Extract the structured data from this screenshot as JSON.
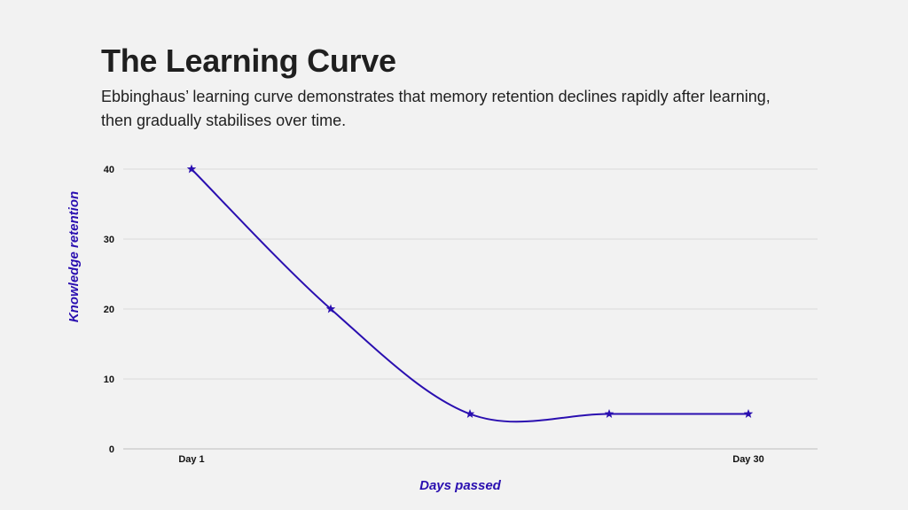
{
  "page": {
    "title": "The Learning Curve",
    "subtitle": "Ebbinghaus’ learning curve demonstrates that memory retention declines rapidly after learning, then gradually stabilises over time."
  },
  "chart_data": {
    "type": "line",
    "x": [
      1,
      2,
      3,
      4,
      5
    ],
    "x_tick_labels": [
      "Day 1",
      "",
      "",
      "",
      "Day 30"
    ],
    "values": [
      40,
      20,
      5,
      5,
      5
    ],
    "xlabel": "Days passed",
    "ylabel": "Knowledge retention",
    "ylim": [
      0,
      40
    ],
    "y_ticks": [
      0,
      10,
      20,
      30,
      40
    ],
    "grid": true,
    "smooth": true,
    "marker": "star",
    "colors": {
      "line": "#2a0fb0",
      "grid": "#d9d9d9",
      "axis_label": "#2a0fb0"
    }
  }
}
